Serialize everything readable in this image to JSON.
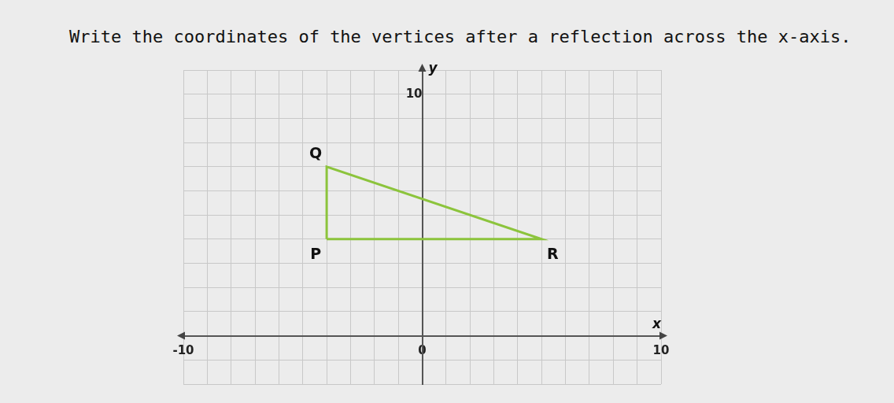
{
  "chart_data": {
    "type": "line",
    "title": "Write the coordinates of the vertices after a reflection across the x-axis.",
    "x_label": "x",
    "y_label": "y",
    "x": [
      -4,
      -4,
      5
    ],
    "values": [
      4,
      7,
      4
    ],
    "point_labels": [
      "P",
      "Q",
      "R"
    ],
    "color": "#8cc43c",
    "xlim": [
      -10,
      10
    ],
    "ylim": [
      -2,
      11
    ],
    "xticks": [
      -10,
      0,
      10
    ],
    "yticks": [
      10
    ],
    "grid": true
  }
}
